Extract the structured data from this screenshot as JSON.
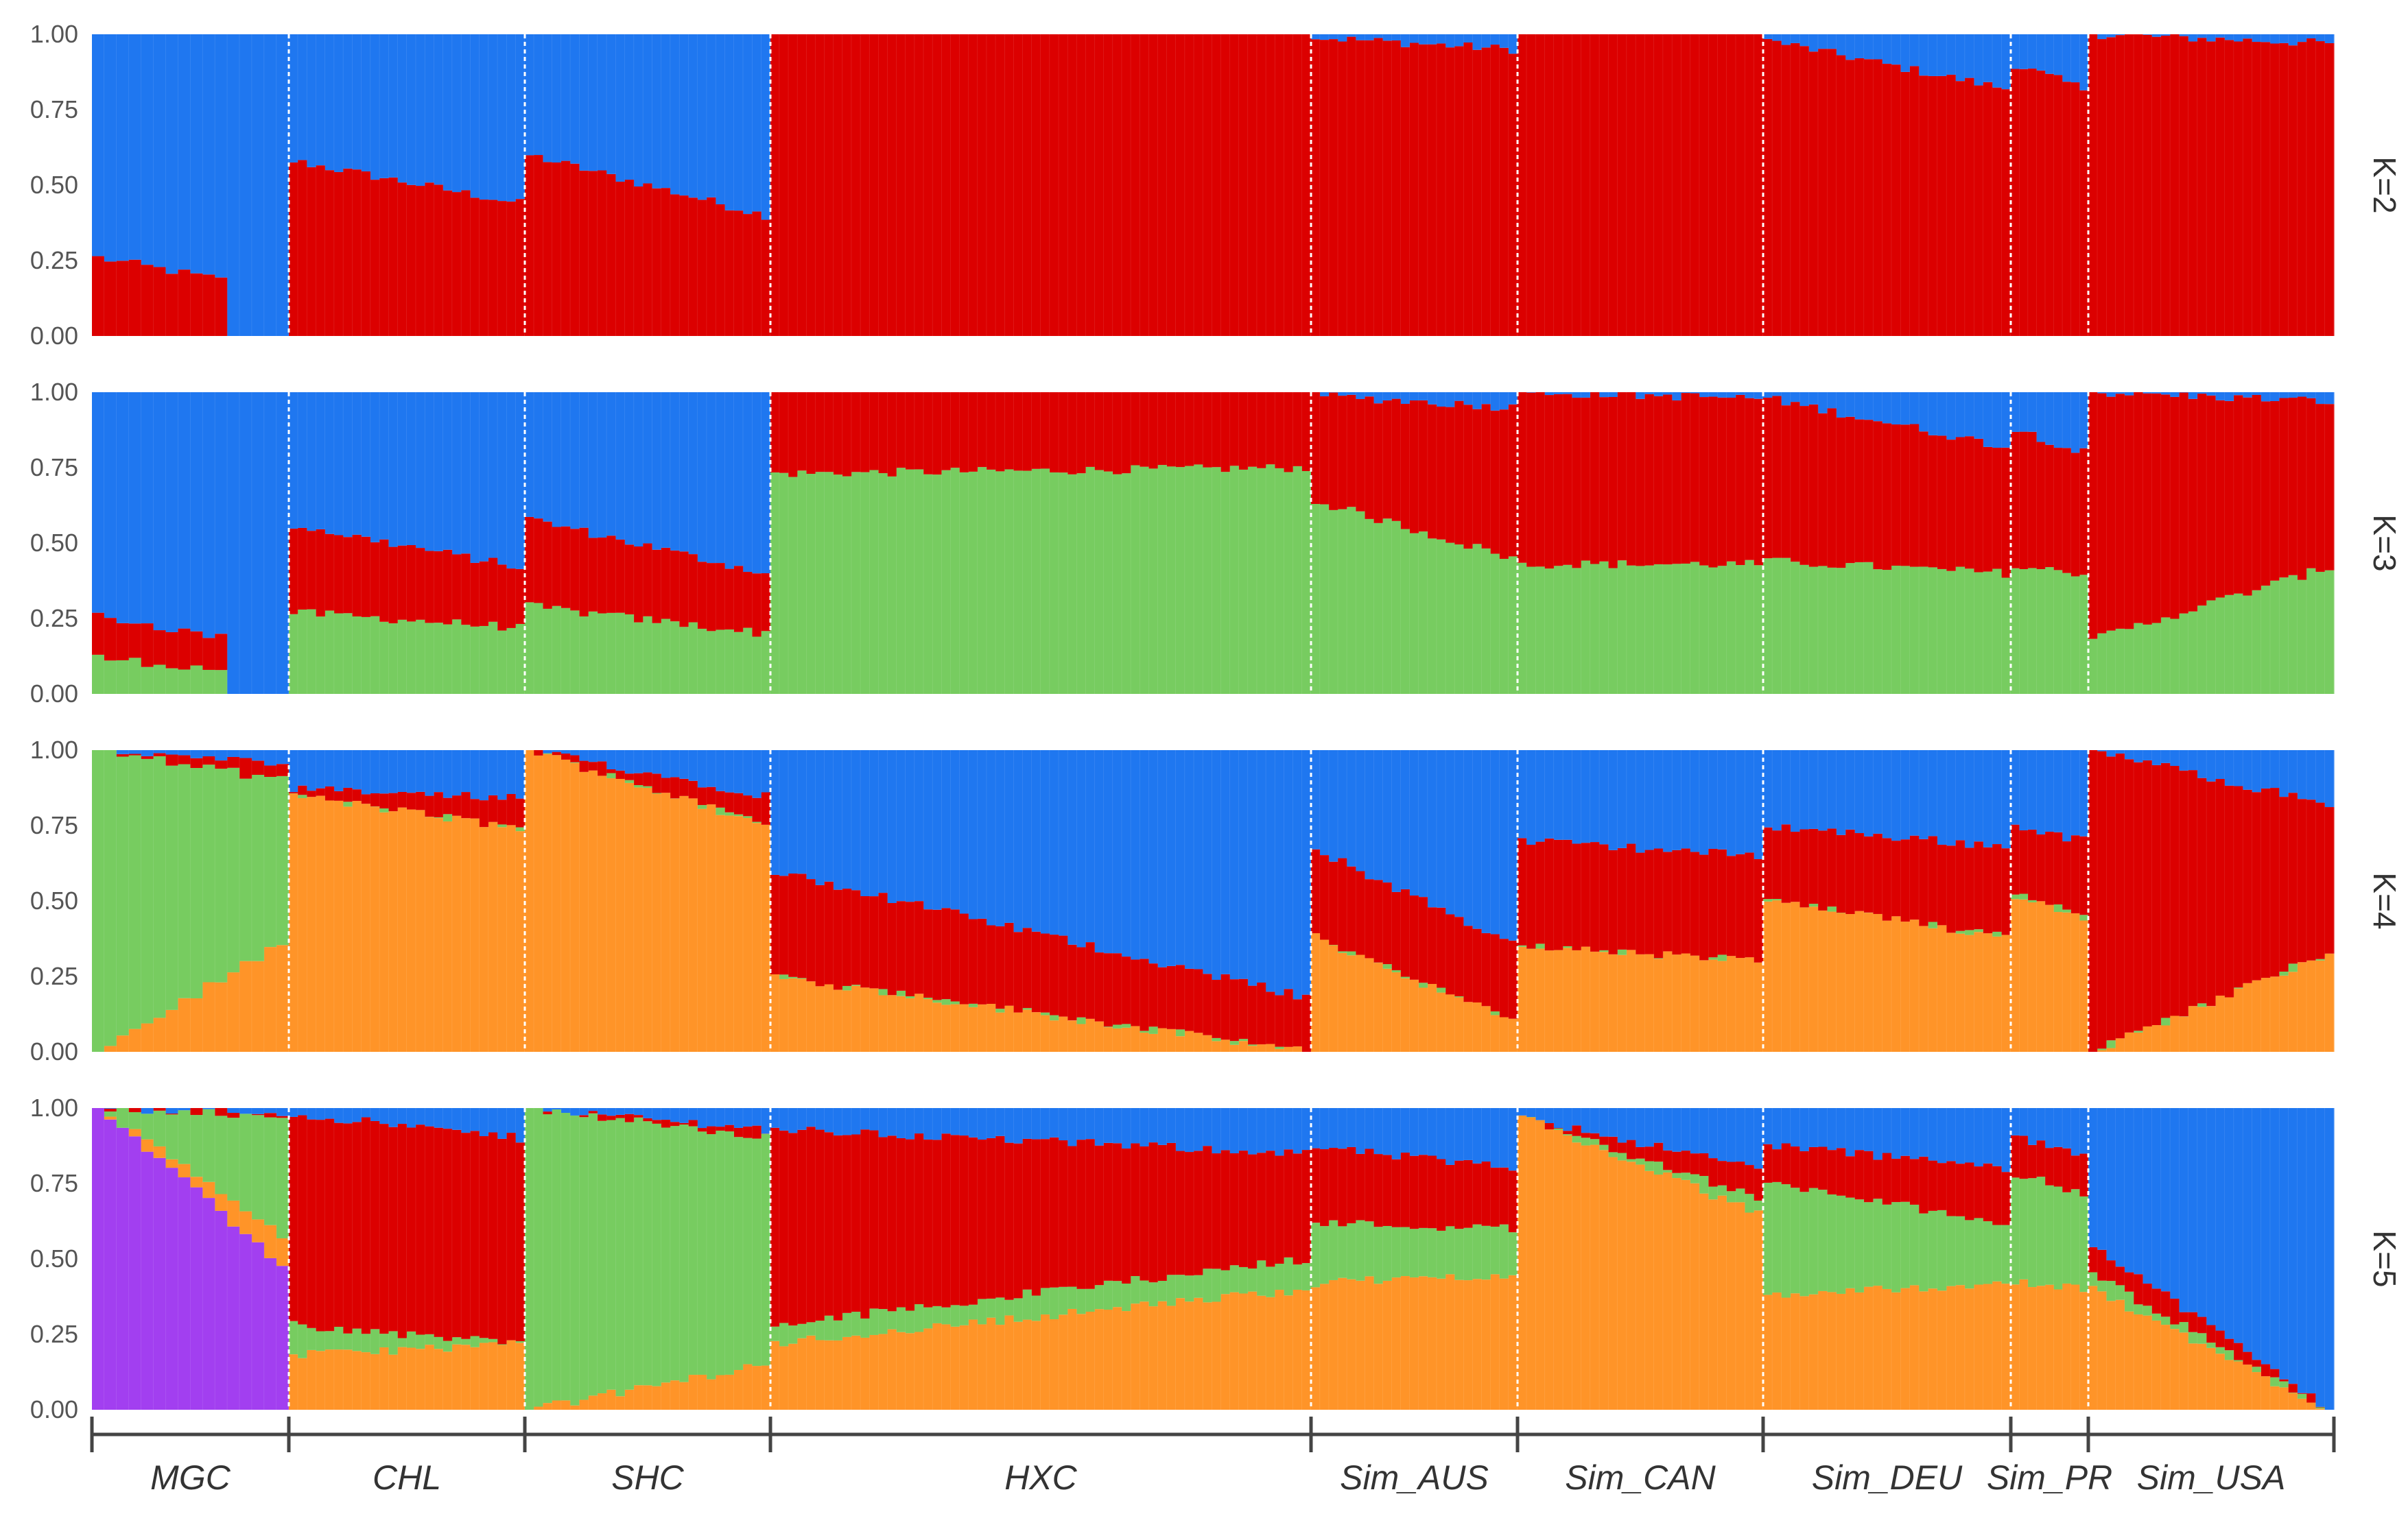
{
  "chart_data": {
    "type": "bar",
    "subtype": "stacked-admixture",
    "title": "",
    "xlabel": "",
    "ylabel": "",
    "ylim": [
      0,
      1
    ],
    "yticks": [
      "0.00",
      "0.25",
      "0.50",
      "0.75",
      "1.00"
    ],
    "grid": false,
    "legend": "none",
    "groups": [
      {
        "name": "MGC",
        "n": 16
      },
      {
        "name": "CHL",
        "n": 26
      },
      {
        "name": "SHC",
        "n": 27
      },
      {
        "name": "HXC",
        "n": 60
      },
      {
        "name": "Sim_AUS",
        "n": 23
      },
      {
        "name": "Sim_CAN",
        "n": 27
      },
      {
        "name": "Sim_DEU",
        "n": 27
      },
      {
        "name": "Sim_PR",
        "n": 9
      },
      {
        "name": "Sim_USA",
        "n": 27
      }
    ],
    "colors": {
      "blue": "#1f77f0",
      "red": "#dc0000",
      "green": "#77cc60",
      "orange": "#ff9428",
      "purple": "#a23ff0"
    },
    "panels": [
      {
        "label": "K=2",
        "stack_order": [
          "red",
          "blue"
        ],
        "groups": [
          {
            "name": "MGC",
            "red": [
              0.26,
              0.15
            ],
            "gap_tail": 5
          },
          {
            "name": "CHL",
            "red": [
              0.58,
              0.44
            ]
          },
          {
            "name": "SHC",
            "red": [
              0.6,
              0.4
            ]
          },
          {
            "name": "HXC",
            "red": [
              1.0,
              1.0
            ],
            "tail": [
              0.98,
              0.96
            ]
          },
          {
            "name": "Sim_AUS",
            "red": [
              0.99,
              0.95
            ]
          },
          {
            "name": "Sim_CAN",
            "red": [
              1.0,
              1.0
            ]
          },
          {
            "name": "Sim_DEU",
            "red": [
              0.98,
              0.82
            ]
          },
          {
            "name": "Sim_PR",
            "red": [
              0.9,
              0.82
            ]
          },
          {
            "name": "Sim_USA",
            "red": [
              1.0,
              0.97
            ]
          }
        ]
      },
      {
        "label": "K=3",
        "stack_order": [
          "green",
          "red",
          "blue"
        ],
        "groups": [
          {
            "name": "MGC",
            "green": [
              0.12,
              0.06
            ],
            "red": [
              0.26,
              0.15
            ],
            "gap_tail": 5
          },
          {
            "name": "CHL",
            "green": [
              0.27,
              0.22
            ],
            "red": [
              0.56,
              0.42
            ]
          },
          {
            "name": "SHC",
            "green": [
              0.29,
              0.2
            ],
            "red": [
              0.58,
              0.4
            ]
          },
          {
            "name": "HXC",
            "green": [
              0.73,
              0.75
            ],
            "red": [
              1.0,
              1.0
            ]
          },
          {
            "name": "Sim_AUS",
            "green": [
              0.64,
              0.45
            ],
            "red": [
              0.99,
              0.95
            ]
          },
          {
            "name": "Sim_CAN",
            "green": [
              0.43,
              0.43
            ],
            "red": [
              1.0,
              0.98
            ]
          },
          {
            "name": "Sim_DEU",
            "green": [
              0.44,
              0.4
            ],
            "red": [
              0.98,
              0.82
            ]
          },
          {
            "name": "Sim_PR",
            "green": [
              0.42,
              0.4
            ],
            "red": [
              0.88,
              0.8
            ]
          },
          {
            "name": "Sim_USA",
            "green": [
              0.18,
              0.42
            ],
            "red": [
              1.0,
              0.97
            ]
          }
        ]
      },
      {
        "label": "K=4",
        "stack_order": [
          "orange",
          "green",
          "red",
          "blue"
        ],
        "groups": [
          {
            "name": "MGC",
            "orange": [
              0.0,
              0.36
            ],
            "green": [
              1.0,
              0.9
            ],
            "red": [
              1.0,
              0.95
            ]
          },
          {
            "name": "CHL",
            "orange": [
              0.85,
              0.74
            ],
            "green": [
              0.85,
              0.74
            ],
            "red": [
              0.87,
              0.84
            ]
          },
          {
            "name": "SHC",
            "orange": [
              1.0,
              0.75
            ],
            "green": [
              1.0,
              0.75
            ],
            "red": [
              1.0,
              0.85
            ]
          },
          {
            "name": "HXC",
            "orange": [
              0.25,
              0.0
            ],
            "green": [
              0.25,
              0.0
            ],
            "red": [
              0.6,
              0.18
            ]
          },
          {
            "name": "Sim_AUS",
            "orange": [
              0.38,
              0.1
            ],
            "green": [
              0.38,
              0.1
            ],
            "red": [
              0.67,
              0.36
            ]
          },
          {
            "name": "Sim_CAN",
            "orange": [
              0.35,
              0.3
            ],
            "green": [
              0.35,
              0.3
            ],
            "red": [
              0.7,
              0.65
            ]
          },
          {
            "name": "Sim_DEU",
            "orange": [
              0.5,
              0.38
            ],
            "green": [
              0.5,
              0.38
            ],
            "red": [
              0.75,
              0.68
            ]
          },
          {
            "name": "Sim_PR",
            "orange": [
              0.52,
              0.45
            ],
            "green": [
              0.52,
              0.45
            ],
            "red": [
              0.75,
              0.7
            ]
          },
          {
            "name": "Sim_USA",
            "orange": [
              0.0,
              0.33
            ],
            "green": [
              0.0,
              0.33
            ],
            "red": [
              1.0,
              0.82
            ]
          }
        ]
      },
      {
        "label": "K=5",
        "stack_order": [
          "purple",
          "orange",
          "green",
          "red",
          "blue"
        ],
        "groups": [
          {
            "name": "MGC",
            "purple": [
              1.0,
              0.48
            ],
            "orange": [
              1.0,
              0.58
            ],
            "green": [
              1.0,
              0.97
            ],
            "red": [
              1.0,
              0.98
            ]
          },
          {
            "name": "CHL",
            "purple": [
              0.0,
              0.0
            ],
            "orange": [
              0.18,
              0.22
            ],
            "green": [
              0.28,
              0.22
            ],
            "red": [
              0.98,
              0.9
            ]
          },
          {
            "name": "SHC",
            "purple": [
              0.0,
              0.0
            ],
            "orange": [
              0.0,
              0.15
            ],
            "green": [
              1.0,
              0.9
            ],
            "red": [
              1.0,
              0.93
            ]
          },
          {
            "name": "HXC",
            "purple": [
              0.0,
              0.0
            ],
            "orange": [
              0.22,
              0.4
            ],
            "green": [
              0.28,
              0.5
            ],
            "red": [
              0.93,
              0.85
            ]
          },
          {
            "name": "Sim_AUS",
            "purple": [
              0.0,
              0.0
            ],
            "orange": [
              0.42,
              0.45
            ],
            "green": [
              0.62,
              0.6
            ],
            "red": [
              0.87,
              0.8
            ]
          },
          {
            "name": "Sim_CAN",
            "purple": [
              0.0,
              0.0
            ],
            "orange": [
              0.97,
              0.65
            ],
            "green": [
              0.97,
              0.7
            ],
            "red": [
              0.97,
              0.8
            ]
          },
          {
            "name": "Sim_DEU",
            "purple": [
              0.0,
              0.0
            ],
            "orange": [
              0.38,
              0.42
            ],
            "green": [
              0.75,
              0.62
            ],
            "red": [
              0.88,
              0.8
            ]
          },
          {
            "name": "Sim_PR",
            "purple": [
              0.0,
              0.0
            ],
            "orange": [
              0.42,
              0.4
            ],
            "green": [
              0.78,
              0.72
            ],
            "red": [
              0.9,
              0.85
            ]
          },
          {
            "name": "Sim_USA",
            "purple": [
              0.0,
              0.0
            ],
            "orange": [
              0.4,
              0.0
            ],
            "green": [
              0.45,
              0.0
            ],
            "red": [
              0.55,
              0.0
            ]
          }
        ]
      }
    ]
  }
}
